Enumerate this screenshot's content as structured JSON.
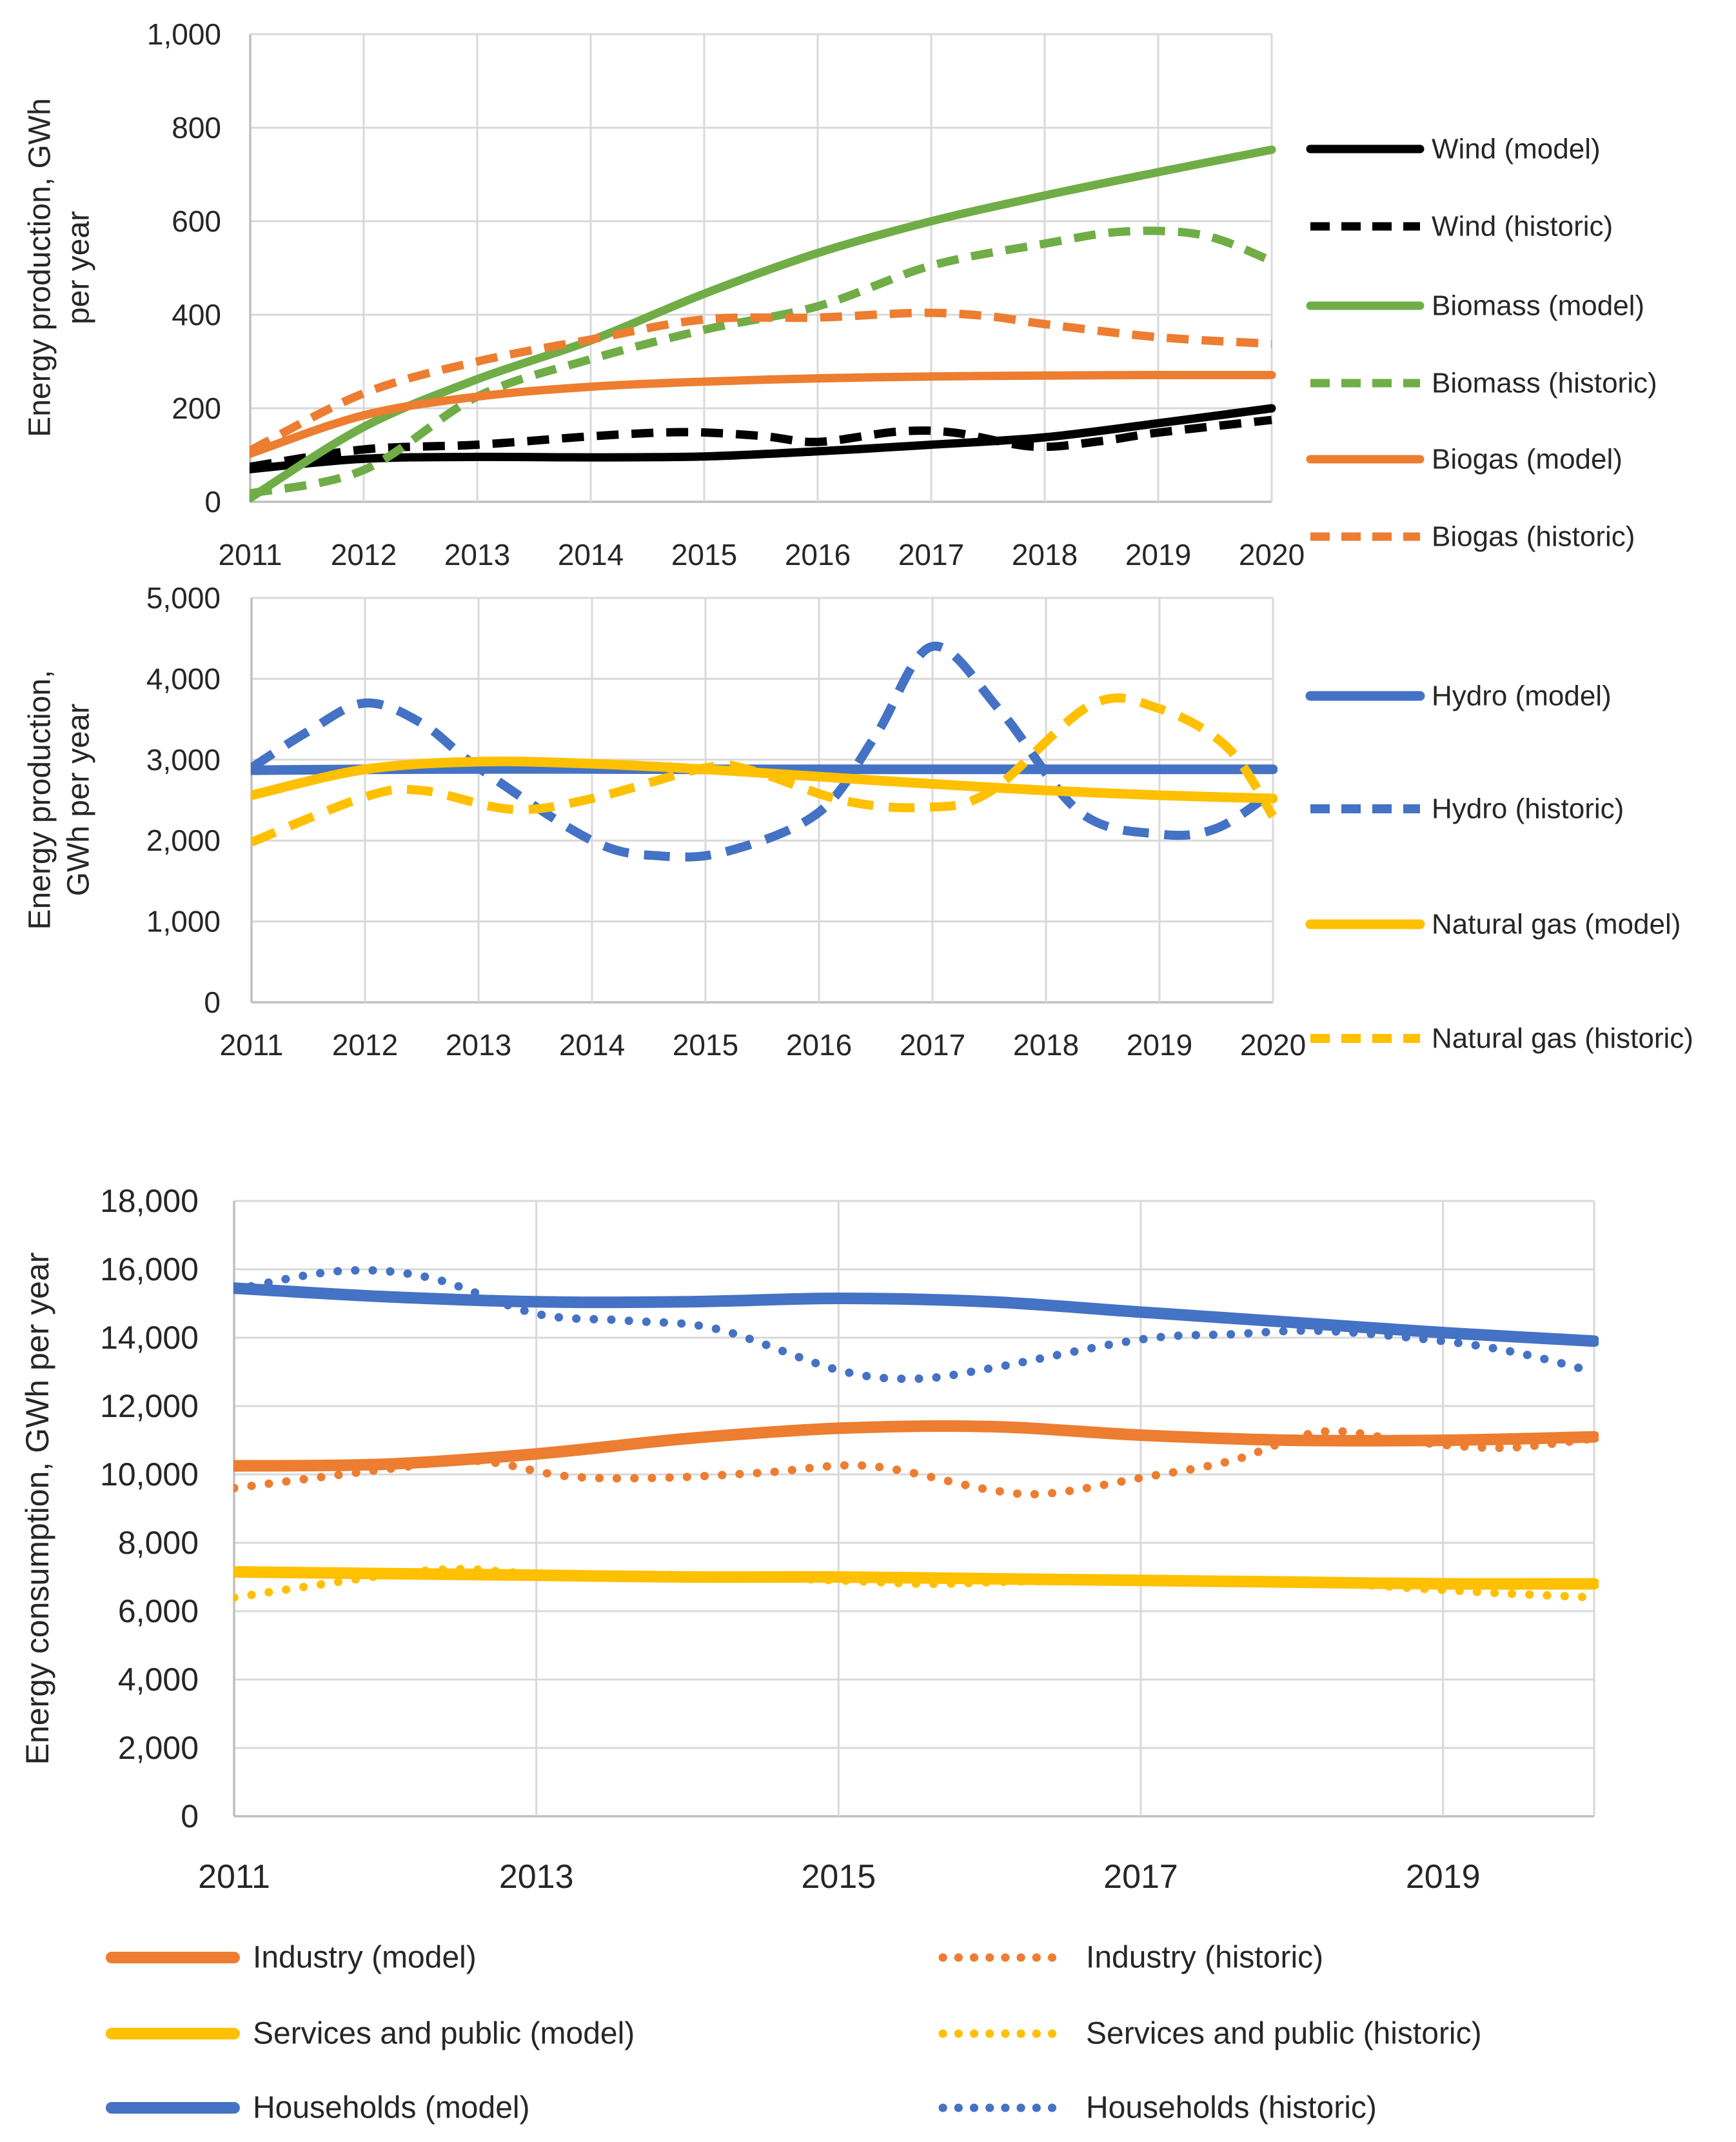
{
  "figure": {
    "background": "#FFFFFF",
    "gridline_color": "#D9D9D9",
    "axis_color": "#BFBFBF",
    "text_color": "#262626"
  },
  "chart_data": [
    {
      "type": "line",
      "title": "",
      "ylabel_lines": [
        "Energy production, GWh",
        "per year"
      ],
      "xlim": [
        2011,
        2020
      ],
      "ylim": [
        0,
        1000
      ],
      "y_ticks": [
        0,
        200,
        400,
        600,
        800,
        1000
      ],
      "x_ticks": [
        2011,
        2012,
        2013,
        2014,
        2015,
        2016,
        2017,
        2018,
        2019,
        2020
      ],
      "grid": "both",
      "legend_position": "right",
      "series": [
        {
          "name": "Wind (model)",
          "color": "#000000",
          "line_style": "solid",
          "points": [
            [
              2011,
              70
            ],
            [
              2012,
              92
            ],
            [
              2013,
              96
            ],
            [
              2014,
              95
            ],
            [
              2015,
              97
            ],
            [
              2016,
              108
            ],
            [
              2017,
              122
            ],
            [
              2018,
              138
            ],
            [
              2019,
              168
            ],
            [
              2020,
              200
            ]
          ]
        },
        {
          "name": "Wind (historic)",
          "color": "#000000",
          "line_style": "dashed",
          "points": [
            [
              2011,
              75
            ],
            [
              2012,
              112
            ],
            [
              2013,
              122
            ],
            [
              2014,
              140
            ],
            [
              2014.8,
              149
            ],
            [
              2015.5,
              141
            ],
            [
              2016,
              128
            ],
            [
              2016.7,
              150
            ],
            [
              2017.2,
              148
            ],
            [
              2017.9,
              118
            ],
            [
              2018.5,
              130
            ],
            [
              2019,
              148
            ],
            [
              2020,
              175
            ]
          ]
        },
        {
          "name": "Biomass (model)",
          "color": "#70AD47",
          "line_style": "solid",
          "points": [
            [
              2011,
              8
            ],
            [
              2012,
              160
            ],
            [
              2013,
              262
            ],
            [
              2014,
              345
            ],
            [
              2015,
              445
            ],
            [
              2016,
              532
            ],
            [
              2017,
              600
            ],
            [
              2018,
              655
            ],
            [
              2019,
              705
            ],
            [
              2020,
              753
            ]
          ]
        },
        {
          "name": "Biomass (historic)",
          "color": "#70AD47",
          "line_style": "dashed",
          "points": [
            [
              2011,
              18
            ],
            [
              2012,
              68
            ],
            [
              2013,
              225
            ],
            [
              2014,
              305
            ],
            [
              2015,
              368
            ],
            [
              2016,
              418
            ],
            [
              2017,
              505
            ],
            [
              2018,
              552
            ],
            [
              2018.7,
              578
            ],
            [
              2019.4,
              570
            ],
            [
              2020,
              515
            ]
          ]
        },
        {
          "name": "Biogas (model)",
          "color": "#ED7D31",
          "line_style": "solid",
          "points": [
            [
              2011,
              103
            ],
            [
              2012,
              185
            ],
            [
              2013,
              225
            ],
            [
              2014,
              246
            ],
            [
              2015,
              257
            ],
            [
              2016,
              264
            ],
            [
              2017,
              268
            ],
            [
              2018,
              270
            ],
            [
              2019,
              271
            ],
            [
              2020,
              271
            ]
          ]
        },
        {
          "name": "Biogas (historic)",
          "color": "#ED7D31",
          "line_style": "dashed",
          "points": [
            [
              2011,
              110
            ],
            [
              2012,
              232
            ],
            [
              2013,
              300
            ],
            [
              2014,
              347
            ],
            [
              2015,
              390
            ],
            [
              2016,
              394
            ],
            [
              2016.9,
              404
            ],
            [
              2017.5,
              397
            ],
            [
              2018,
              380
            ],
            [
              2019,
              352
            ],
            [
              2020,
              338
            ]
          ]
        }
      ]
    },
    {
      "type": "line",
      "title": "",
      "ylabel_lines": [
        "Energy production,",
        "GWh per year"
      ],
      "xlim": [
        2011,
        2020
      ],
      "ylim": [
        0,
        5000
      ],
      "y_ticks": [
        0,
        1000,
        2000,
        3000,
        4000,
        5000
      ],
      "x_ticks": [
        2011,
        2012,
        2013,
        2014,
        2015,
        2016,
        2017,
        2018,
        2019,
        2020
      ],
      "grid": "both",
      "legend_position": "right",
      "series": [
        {
          "name": "Hydro (model)",
          "color": "#4472C4",
          "line_style": "solid",
          "points": [
            [
              2011,
              2870
            ],
            [
              2012,
              2880
            ],
            [
              2013,
              2885
            ],
            [
              2014,
              2885
            ],
            [
              2015,
              2880
            ],
            [
              2016,
              2880
            ],
            [
              2017,
              2880
            ],
            [
              2018,
              2880
            ],
            [
              2019,
              2880
            ],
            [
              2020,
              2880
            ]
          ]
        },
        {
          "name": "Hydro (historic)",
          "color": "#4472C4",
          "line_style": "dashed",
          "points": [
            [
              2011,
              2900
            ],
            [
              2011.5,
              3350
            ],
            [
              2012,
              3700
            ],
            [
              2012.5,
              3450
            ],
            [
              2013,
              2900
            ],
            [
              2014,
              2000
            ],
            [
              2014.6,
              1810
            ],
            [
              2015.2,
              1870
            ],
            [
              2016,
              2350
            ],
            [
              2016.5,
              3300
            ],
            [
              2017,
              4400
            ],
            [
              2017.6,
              3600
            ],
            [
              2018.3,
              2350
            ],
            [
              2019,
              2080
            ],
            [
              2019.5,
              2150
            ],
            [
              2020,
              2600
            ]
          ]
        },
        {
          "name": "Natural gas (model)",
          "color": "#FFC000",
          "line_style": "solid",
          "points": [
            [
              2011,
              2560
            ],
            [
              2012,
              2880
            ],
            [
              2013,
              2975
            ],
            [
              2014,
              2950
            ],
            [
              2015,
              2880
            ],
            [
              2016,
              2790
            ],
            [
              2017,
              2700
            ],
            [
              2018,
              2620
            ],
            [
              2019,
              2560
            ],
            [
              2020,
              2520
            ]
          ]
        },
        {
          "name": "Natural gas (historic)",
          "color": "#FFC000",
          "line_style": "dashed",
          "points": [
            [
              2011,
              1980
            ],
            [
              2012,
              2540
            ],
            [
              2012.5,
              2620
            ],
            [
              2013.3,
              2385
            ],
            [
              2014,
              2520
            ],
            [
              2015,
              2900
            ],
            [
              2015.4,
              2870
            ],
            [
              2016.2,
              2500
            ],
            [
              2016.9,
              2410
            ],
            [
              2017.5,
              2600
            ],
            [
              2018.4,
              3680
            ],
            [
              2019,
              3630
            ],
            [
              2019.6,
              3150
            ],
            [
              2020,
              2300
            ]
          ]
        }
      ]
    },
    {
      "type": "line",
      "title": "",
      "ylabel_lines": [
        "Energy consumption, GWh per year"
      ],
      "xlim": [
        2011,
        2020
      ],
      "ylim": [
        0,
        18000
      ],
      "y_ticks": [
        0,
        2000,
        4000,
        6000,
        8000,
        10000,
        12000,
        14000,
        16000,
        18000
      ],
      "x_ticks": [
        2011,
        2013,
        2015,
        2017,
        2019
      ],
      "grid": "both",
      "legend_position": "bottom-two-columns",
      "series": [
        {
          "name": "Industry (model)",
          "color": "#ED7D31",
          "line_style": "solid",
          "points": [
            [
              2011,
              10250
            ],
            [
              2012,
              10300
            ],
            [
              2013,
              10600
            ],
            [
              2014,
              11050
            ],
            [
              2015,
              11350
            ],
            [
              2016,
              11400
            ],
            [
              2017,
              11150
            ],
            [
              2018,
              11000
            ],
            [
              2019,
              11000
            ],
            [
              2020,
              11100
            ]
          ]
        },
        {
          "name": "Services and public (model)",
          "color": "#FFC000",
          "line_style": "solid",
          "points": [
            [
              2011,
              7150
            ],
            [
              2012,
              7100
            ],
            [
              2013,
              7050
            ],
            [
              2014,
              7000
            ],
            [
              2015,
              7000
            ],
            [
              2016,
              6950
            ],
            [
              2017,
              6900
            ],
            [
              2018,
              6850
            ],
            [
              2019,
              6800
            ],
            [
              2020,
              6800
            ]
          ]
        },
        {
          "name": "Households (model)",
          "color": "#4472C4",
          "line_style": "solid",
          "points": [
            [
              2011,
              15450
            ],
            [
              2012,
              15200
            ],
            [
              2013,
              15050
            ],
            [
              2014,
              15050
            ],
            [
              2015,
              15150
            ],
            [
              2016,
              15050
            ],
            [
              2017,
              14750
            ],
            [
              2018,
              14450
            ],
            [
              2019,
              14150
            ],
            [
              2020,
              13900
            ]
          ]
        },
        {
          "name": "Industry (historic)",
          "color": "#ED7D31",
          "line_style": "dotted",
          "points": [
            [
              2011,
              9600
            ],
            [
              2012,
              10150
            ],
            [
              2012.6,
              10400
            ],
            [
              2013.2,
              9950
            ],
            [
              2013.8,
              9900
            ],
            [
              2014.5,
              10050
            ],
            [
              2015.2,
              10250
            ],
            [
              2016,
              9550
            ],
            [
              2016.4,
              9450
            ],
            [
              2017,
              9900
            ],
            [
              2017.6,
              10400
            ],
            [
              2018.2,
              11250
            ],
            [
              2018.8,
              10950
            ],
            [
              2019.4,
              10780
            ],
            [
              2020,
              11050
            ]
          ]
        },
        {
          "name": "Services and public (historic)",
          "color": "#FFC000",
          "line_style": "dotted",
          "points": [
            [
              2011,
              6400
            ],
            [
              2012,
              7050
            ],
            [
              2012.5,
              7230
            ],
            [
              2013,
              7100
            ],
            [
              2014,
              7050
            ],
            [
              2015,
              6900
            ],
            [
              2015.6,
              6800
            ],
            [
              2016.2,
              6870
            ],
            [
              2017,
              6900
            ],
            [
              2017.6,
              6820
            ],
            [
              2018.3,
              6800
            ],
            [
              2019,
              6620
            ],
            [
              2019.5,
              6500
            ],
            [
              2020,
              6400
            ]
          ]
        },
        {
          "name": "Households (historic)",
          "color": "#4472C4",
          "line_style": "dotted",
          "points": [
            [
              2011,
              15400
            ],
            [
              2011.7,
              15950
            ],
            [
              2012.3,
              15750
            ],
            [
              2013,
              14700
            ],
            [
              2013.6,
              14500
            ],
            [
              2014.2,
              14250
            ],
            [
              2015,
              13050
            ],
            [
              2015.5,
              12800
            ],
            [
              2016,
              13100
            ],
            [
              2017,
              13950
            ],
            [
              2017.6,
              14100
            ],
            [
              2018.2,
              14200
            ],
            [
              2019,
              13900
            ],
            [
              2019.5,
              13550
            ],
            [
              2020,
              13000
            ]
          ]
        }
      ]
    }
  ]
}
